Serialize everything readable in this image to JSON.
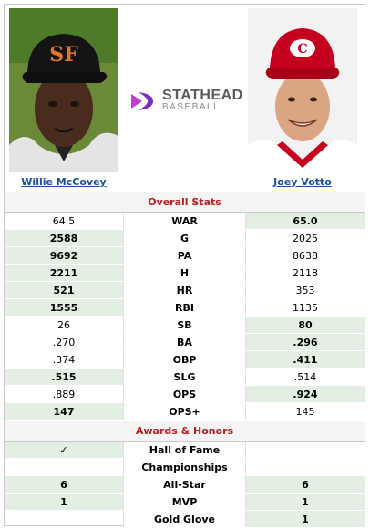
{
  "players": {
    "left": {
      "name": "Willie McCovey"
    },
    "right": {
      "name": "Joey Votto"
    }
  },
  "logo": {
    "line1": "STATHEAD",
    "line2": "BASEBALL"
  },
  "colors": {
    "win_bg": "#e3efe3",
    "section_title": "#b21f1f",
    "link": "#1a4fa0"
  },
  "overall": {
    "title": "Overall Stats",
    "rows": [
      {
        "label": "WAR",
        "left": "64.5",
        "right": "65.0",
        "winner": "right"
      },
      {
        "label": "G",
        "left": "2588",
        "right": "2025",
        "winner": "left"
      },
      {
        "label": "PA",
        "left": "9692",
        "right": "8638",
        "winner": "left"
      },
      {
        "label": "H",
        "left": "2211",
        "right": "2118",
        "winner": "left"
      },
      {
        "label": "HR",
        "left": "521",
        "right": "353",
        "winner": "left"
      },
      {
        "label": "RBI",
        "left": "1555",
        "right": "1135",
        "winner": "left"
      },
      {
        "label": "SB",
        "left": "26",
        "right": "80",
        "winner": "right"
      },
      {
        "label": "BA",
        "left": ".270",
        "right": ".296",
        "winner": "right"
      },
      {
        "label": "OBP",
        "left": ".374",
        "right": ".411",
        "winner": "right"
      },
      {
        "label": "SLG",
        "left": ".515",
        "right": ".514",
        "winner": "left"
      },
      {
        "label": "OPS",
        "left": ".889",
        "right": ".924",
        "winner": "right"
      },
      {
        "label": "OPS+",
        "left": "147",
        "right": "145",
        "winner": "left"
      }
    ]
  },
  "awards": {
    "title": "Awards & Honors",
    "rows": [
      {
        "label": "Hall of Fame",
        "left": "✓",
        "right": "",
        "winner": "left"
      },
      {
        "label": "Championships",
        "left": "",
        "right": "",
        "winner": "none"
      },
      {
        "label": "All-Star",
        "left": "6",
        "right": "6",
        "winner": "both"
      },
      {
        "label": "MVP",
        "left": "1",
        "right": "1",
        "winner": "both"
      },
      {
        "label": "Gold Glove",
        "left": "",
        "right": "1",
        "winner": "right"
      }
    ]
  }
}
